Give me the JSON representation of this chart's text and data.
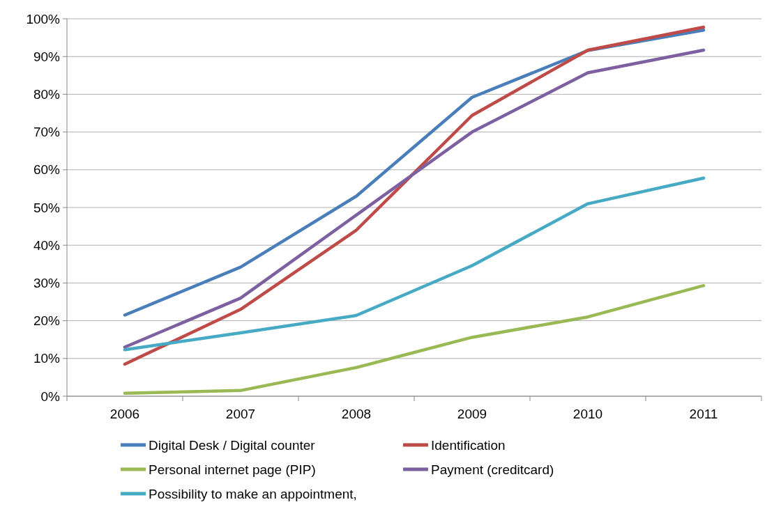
{
  "chart_data": {
    "type": "line",
    "categories": [
      "2006",
      "2007",
      "2008",
      "2009",
      "2010",
      "2011"
    ],
    "series": [
      {
        "name": "Digital Desk / Digital counter",
        "color": "#4a7ebb",
        "values": [
          21.5,
          34.2,
          53,
          79.2,
          91.6,
          97
        ]
      },
      {
        "name": "Identification",
        "color": "#be4b48",
        "values": [
          8.5,
          23,
          44,
          74.4,
          91.7,
          97.8
        ]
      },
      {
        "name": "Personal internet page (PIP)",
        "color": "#98b954",
        "values": [
          0.8,
          1.5,
          7.6,
          15.6,
          21,
          29.3
        ]
      },
      {
        "name": "Payment (creditcard)",
        "color": "#7d60a0",
        "values": [
          13,
          26,
          48,
          70,
          85.7,
          91.7
        ]
      },
      {
        "name": "Possibility to make an appointment,",
        "color": "#46aac5",
        "values": [
          12.3,
          16.8,
          21.4,
          34.6,
          51,
          57.8
        ]
      }
    ],
    "ylim": [
      0,
      100
    ],
    "yticks": [
      {
        "value": 0,
        "label": "0%"
      },
      {
        "value": 10,
        "label": "10%"
      },
      {
        "value": 20,
        "label": "20%"
      },
      {
        "value": 30,
        "label": "30%"
      },
      {
        "value": 40,
        "label": "40%"
      },
      {
        "value": 50,
        "label": "50%"
      },
      {
        "value": 60,
        "label": "60%"
      },
      {
        "value": 70,
        "label": "70%"
      },
      {
        "value": 80,
        "label": "80%"
      },
      {
        "value": 90,
        "label": "90%"
      },
      {
        "value": 100,
        "label": "100%"
      }
    ],
    "grid": "y",
    "legend": "bottom",
    "line_style": "solid"
  }
}
